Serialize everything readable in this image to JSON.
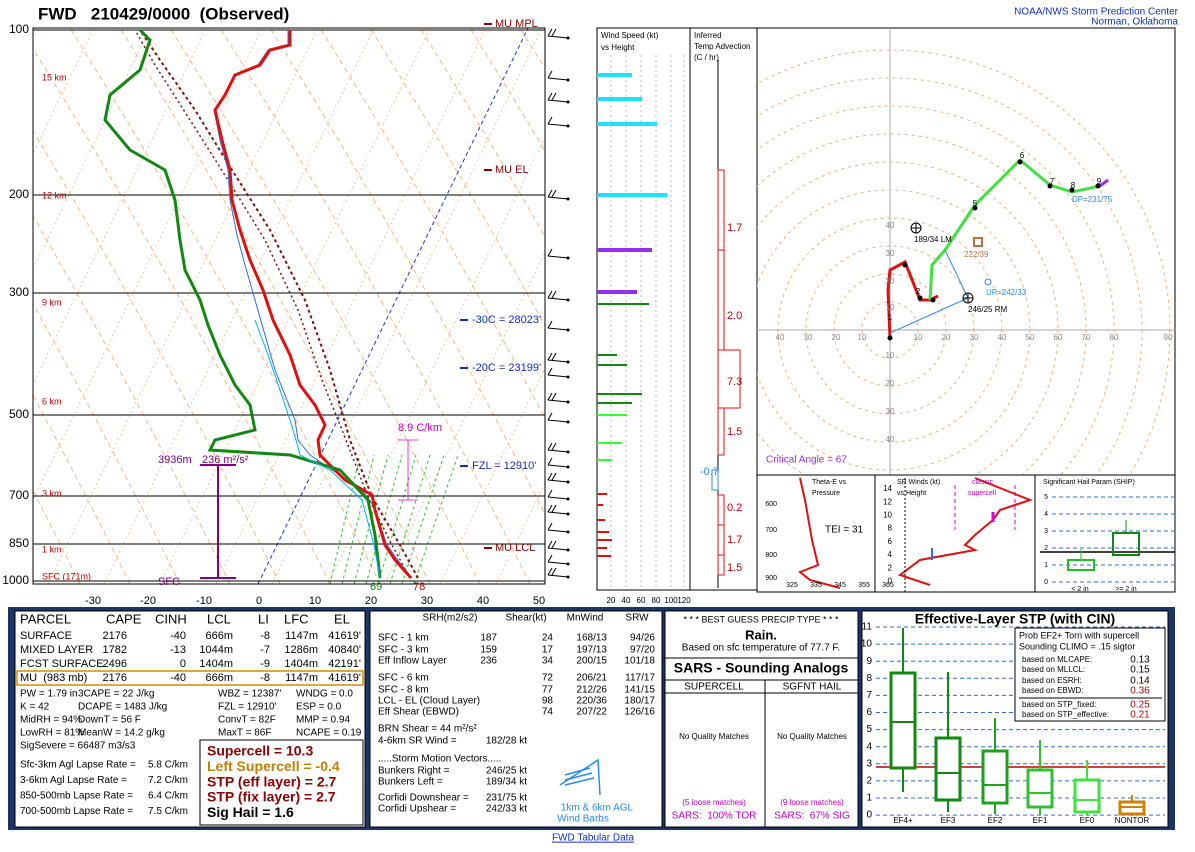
{
  "header": {
    "title": "FWD   210429/0000  (Observed)",
    "org": "NOAA/NWS Storm Prediction Center",
    "location": "Norman, Oklahoma"
  },
  "skewt": {
    "pressure_labels": [
      "100",
      "200",
      "300",
      "500",
      "700",
      "850",
      "1000"
    ],
    "height_labels": [
      "15 km",
      "12 km",
      "9 km",
      "6 km",
      "3 km",
      "1 km",
      "SFC (171m)"
    ],
    "temperature_labels": [
      "-30",
      "-20",
      "-10",
      "0",
      "10",
      "20",
      "30",
      "40",
      "50"
    ],
    "mu_mpl": "MU MPL",
    "mu_el": "MU EL",
    "mu_lcl": "MU LCL",
    "minus30": "-30C = 28023'",
    "minus20": "-20C = 23199'",
    "fzl": "FZL = 12910'",
    "lapse": "8.9 C/km",
    "eff_depth": "3936m",
    "eff_srh": "236 m²/s²",
    "sfc": "SFC",
    "sfc_td": "69",
    "sfc_t": "78"
  },
  "wind_speed": {
    "title": [
      "Wind Speed (kt)",
      "vs Height"
    ],
    "ticks": [
      "20",
      "40",
      "60",
      "80",
      "100",
      "120"
    ]
  },
  "temp_advection": {
    "title": [
      "Inferred",
      "Temp Advection",
      "(C / hr)"
    ],
    "values": [
      "1.7",
      "2.0",
      "7.3",
      "1.5",
      "-0.7",
      "0.2",
      "1.7",
      "1.5"
    ]
  },
  "hodograph": {
    "x_labels": [
      "40",
      "30",
      "20",
      "10",
      "10",
      "20",
      "30",
      "40",
      "50",
      "60",
      "70",
      "80",
      "90"
    ],
    "y_labels": [
      "40",
      "30",
      "20",
      "10",
      "10",
      "20",
      "30",
      "40"
    ],
    "points": [
      "1",
      "2",
      "5",
      "6",
      "7",
      "8",
      "9"
    ],
    "lm": "189/34 LM",
    "mean": "222/39",
    "up": "UP=242/33",
    "rm": "246/25 RM",
    "dp": "DP=231/75",
    "critical_angle": "Critical Angle = 67"
  },
  "theta_e": {
    "title": [
      "Theta-E vs",
      "Pressure"
    ],
    "tei": "TEI = 31",
    "y_labels": [
      "600",
      "700",
      "800",
      "900"
    ],
    "x_labels": [
      "325",
      "335",
      "345",
      "355",
      "365"
    ]
  },
  "sr_winds": {
    "title": [
      "SR Winds (kt)",
      "vs Height"
    ],
    "y_labels": [
      "14",
      "12",
      "10",
      "8",
      "6",
      "4",
      "2",
      "0"
    ],
    "classic": [
      "classic",
      "supercell"
    ]
  },
  "ship": {
    "title": "Significant Hail Param (SHIP)",
    "y_labels": [
      "5",
      "4",
      "3",
      "2",
      "1",
      "0"
    ],
    "x_labels": [
      "< 2 in",
      ">= 2 in"
    ]
  },
  "parcels": {
    "header": [
      "PARCEL",
      "CAPE",
      "CINH",
      "LCL",
      "LI",
      "LFC",
      "EL"
    ],
    "rows": [
      [
        "SURFACE",
        "2176",
        "-40",
        "666m",
        "-8",
        "1147m",
        "41619'"
      ],
      [
        "MIXED LAYER",
        "1782",
        "-13",
        "1044m",
        "-7",
        "1286m",
        "40840'"
      ],
      [
        "FCST SURFACE",
        "2496",
        "0",
        "1404m",
        "-9",
        "1404m",
        "42191'"
      ],
      [
        "MU  (983 mb)",
        "2176",
        "-40",
        "666m",
        "-8",
        "1147m",
        "41619'"
      ]
    ]
  },
  "thermo": {
    "rows": [
      [
        "PW = 1.79 in",
        "3CAPE = 22 J/kg",
        "WBZ = 12387'",
        "WNDG = 0.0"
      ],
      [
        "K = 42",
        "DCAPE = 1483 J/kg",
        "FZL = 12910'",
        "ESP = 0.0"
      ],
      [
        "MidRH = 94%",
        "DownT = 56 F",
        "ConvT = 82F",
        "MMP = 0.94"
      ],
      [
        "LowRH = 81%",
        "MeanW = 14.2 g/kg",
        "MaxT = 86F",
        "NCAPE = 0.19"
      ]
    ],
    "sig_severe": "SigSevere = 66487 m3/s3"
  },
  "lapse_rates": [
    [
      "Sfc-3km Agl Lapse Rate =",
      "5.8 C/km"
    ],
    [
      "3-6km Agl Lapse Rate =",
      "7.2 C/km"
    ],
    [
      "850-500mb Lapse Rate =",
      "6.4 C/km"
    ],
    [
      "700-500mb Lapse Rate =",
      "7.5 C/km"
    ]
  ],
  "indices": [
    "Supercell = 10.3",
    "Left Supercell = -0.4",
    "STP (eff layer) = 2.7",
    "STP (fix layer) = 2.7",
    "Sig Hail = 1.6"
  ],
  "kinematics": {
    "header": [
      "SRH(m2/s2)",
      "Shear(kt)",
      "MnWind",
      "SRW"
    ],
    "rows": [
      [
        "SFC - 1 km",
        "187",
        "24",
        "168/13",
        "94/26"
      ],
      [
        "SFC - 3 km",
        "159",
        "17",
        "197/13",
        "97/20"
      ],
      [
        "Eff Inflow Layer",
        "236",
        "34",
        "200/15",
        "101/18"
      ],
      [
        "SFC - 6 km",
        null,
        "72",
        "206/21",
        "117/17"
      ],
      [
        "SFC - 8 km",
        null,
        "77",
        "212/26",
        "141/15"
      ],
      [
        "LCL - EL (Cloud Layer)",
        null,
        "98",
        "220/36",
        "180/17"
      ],
      [
        "Eff Shear (EBWD)",
        null,
        "74",
        "207/22",
        "126/16"
      ]
    ],
    "brn": "BRN Shear = 44 m²/s²",
    "sr46": [
      "4-6km SR Wind =",
      "182/28 kt"
    ],
    "storm_motion": ".....Storm Motion Vectors.....",
    "vectors": [
      [
        "Bunkers Right =",
        "246/25 kt"
      ],
      [
        "Bunkers Left =",
        "189/34 kt"
      ],
      [
        "Corfidi Downshear =",
        "231/75 kt"
      ],
      [
        "Corfidi Upshear =",
        "242/33 kt"
      ]
    ],
    "barbs_caption": [
      "1km & 6km AGL",
      "Wind Barbs"
    ]
  },
  "precip": {
    "title": "* * * BEST GUESS PRECIP TYPE * * *",
    "type": "Rain.",
    "basis": "Based on sfc temperature of 77.7 F."
  },
  "sars": {
    "title": "SARS - Sounding Analogs",
    "columns": [
      {
        "name": "SUPERCELL",
        "matches": "No Quality Matches",
        "loose": "(5 loose matches)",
        "result": "SARS:  100% TOR"
      },
      {
        "name": "SGFNT HAIL",
        "matches": "No Quality Matches",
        "loose": "(9 loose matches)",
        "result": "SARS:  67% SIG"
      }
    ]
  },
  "stp": {
    "title": "Effective-Layer STP (with CIN)",
    "y_labels": [
      "11",
      "10",
      "9",
      "8",
      "7",
      "6",
      "5",
      "4",
      "3",
      "2",
      "1",
      "0"
    ],
    "prob_title": [
      "Prob EF2+ Torn with supercell",
      "Sounding CLIMO = .15 sigtor"
    ],
    "probs": [
      [
        "based on MLCAPE:",
        "0.13"
      ],
      [
        "based on MLLCL:",
        "0.15"
      ],
      [
        "based on ESRH:",
        "0.14"
      ],
      [
        "based on EBWD:",
        "0.36"
      ],
      [
        "based on STP_fixed:",
        "0.25"
      ],
      [
        "based on STP_effective:",
        "0.21"
      ]
    ],
    "categories": [
      "EF4+",
      "EF3",
      "EF2",
      "EF1",
      "EF0",
      "NONTOR"
    ]
  },
  "footer": "FWD Tabular Data"
}
